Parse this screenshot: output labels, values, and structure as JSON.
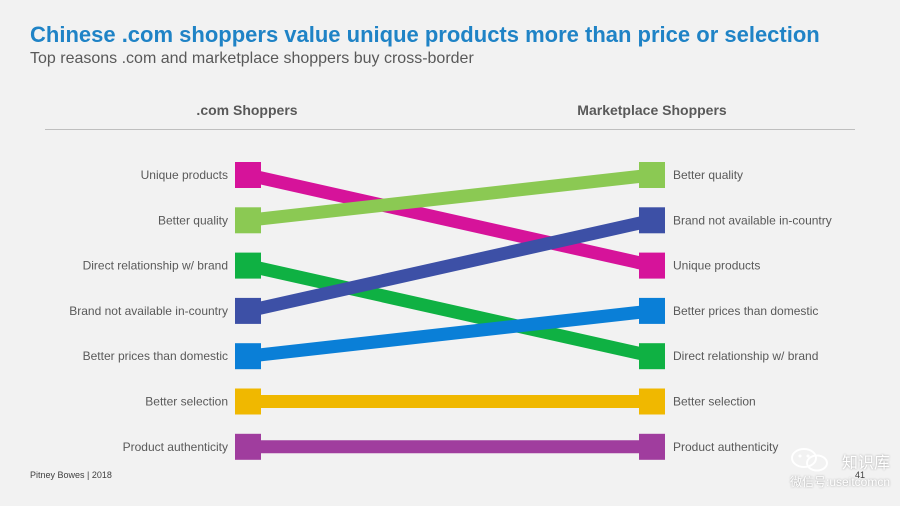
{
  "title": "Chinese .com shoppers value unique products more than price or selection",
  "subtitle": "Top reasons .com and marketplace shoppers buy cross-border",
  "footer": "Pitney Bowes | 2018",
  "page_number": "41",
  "watermark": {
    "line1": "知识库",
    "line2": "微信号:useitcomcn",
    "icon": "wechat-icon"
  },
  "chart_data": {
    "type": "slope",
    "left_header": ".com Shoppers",
    "right_header": "Marketplace Shoppers",
    "left_order": [
      "Unique products",
      "Better quality",
      "Direct relationship w/ brand",
      "Brand not available in-country",
      "Better prices than domestic",
      "Better selection",
      "Product authenticity"
    ],
    "right_order": [
      "Better quality",
      "Brand not available in-country",
      "Unique products",
      "Better prices than domestic",
      "Direct relationship w/ brand",
      "Better selection",
      "Product authenticity"
    ],
    "series": [
      {
        "name": "Unique products",
        "left_rank": 1,
        "right_rank": 3,
        "color": "#d6139a"
      },
      {
        "name": "Better quality",
        "left_rank": 2,
        "right_rank": 1,
        "color": "#8bc953"
      },
      {
        "name": "Direct relationship w/ brand",
        "left_rank": 3,
        "right_rank": 5,
        "color": "#0fb143"
      },
      {
        "name": "Brand not available in-country",
        "left_rank": 4,
        "right_rank": 2,
        "color": "#3d50a6"
      },
      {
        "name": "Better prices than domestic",
        "left_rank": 5,
        "right_rank": 4,
        "color": "#0a7fd7"
      },
      {
        "name": "Better selection",
        "left_rank": 6,
        "right_rank": 6,
        "color": "#f0b800"
      },
      {
        "name": "Product authenticity",
        "left_rank": 7,
        "right_rank": 7,
        "color": "#a03d9e"
      }
    ]
  }
}
